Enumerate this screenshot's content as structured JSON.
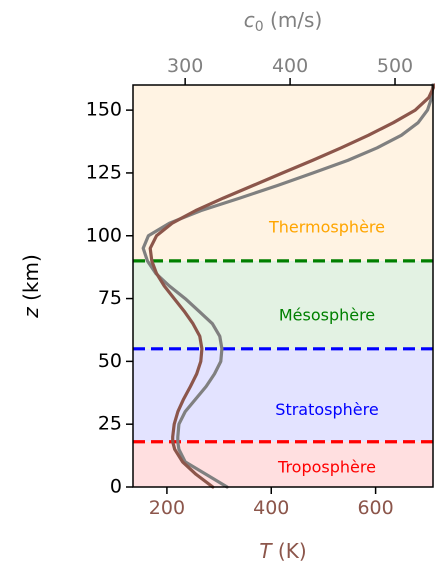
{
  "chart_data": {
    "type": "line",
    "ylabel_var": "z",
    "ylabel_unit": " (km)",
    "xlabel_bottom_var": "T",
    "xlabel_bottom_unit": " (K)",
    "xlabel_top_var": "c",
    "xlabel_top_sub": "0",
    "xlabel_top_unit": " (m/s)",
    "ylim": [
      0,
      160
    ],
    "xlim_bottom": [
      135,
      710
    ],
    "xlim_top": [
      250.3,
      536.2
    ],
    "yticks": [
      0,
      25,
      50,
      75,
      100,
      125,
      150
    ],
    "xticks_bottom": [
      200,
      400,
      600
    ],
    "xticks_top": [
      300,
      400,
      500
    ],
    "colors": {
      "temperature": "#8c564b",
      "sound_speed": "#808080",
      "bottom_axis_text": "#8c564b",
      "top_axis_text": "#808080"
    },
    "layers": [
      {
        "name": "Troposphère",
        "z_min": 0,
        "z_max": 18,
        "z_label": 7.5,
        "fill": "#ffdfe0",
        "line_color": "#ff0000",
        "text_color": "#ff0000"
      },
      {
        "name": "Stratosphère",
        "z_min": 18,
        "z_max": 55,
        "z_label": 30.5,
        "fill": "#e3e3ff",
        "line_color": "#0000ff",
        "text_color": "#0000ff"
      },
      {
        "name": "Mésosphère",
        "z_min": 55,
        "z_max": 90,
        "z_label": 68,
        "fill": "#e3f2e3",
        "line_color": "#008000",
        "text_color": "#008000"
      },
      {
        "name": "Thermosphère",
        "z_min": 90,
        "z_max": 160,
        "z_label": 103,
        "fill": "#fff3e3",
        "line_color": null,
        "text_color": "#ffa500"
      }
    ],
    "series": [
      {
        "key": "temperature",
        "axis": "bottom",
        "z": [
          0,
          5,
          10,
          15,
          18,
          20,
          25,
          30,
          35,
          40,
          45,
          50,
          55,
          60,
          65,
          70,
          75,
          80,
          85,
          90,
          95,
          100,
          105,
          110,
          115,
          120,
          125,
          130,
          135,
          140,
          145,
          150,
          155,
          160
        ],
        "values": [
          288,
          256,
          230,
          215,
          211,
          211,
          214,
          221,
          232,
          245,
          257,
          265,
          267,
          263,
          250,
          233,
          214,
          195,
          180,
          171,
          168,
          180,
          210,
          255,
          308,
          365,
          422,
          479,
          534,
          586,
          634,
          676,
          702,
          713
        ]
      },
      {
        "key": "sound_speed",
        "axis": "top",
        "z": [
          0,
          5,
          10,
          15,
          18,
          20,
          25,
          30,
          35,
          40,
          45,
          50,
          55,
          60,
          65,
          70,
          75,
          80,
          85,
          90,
          95,
          100,
          105,
          110,
          115,
          120,
          125,
          130,
          135,
          140,
          145,
          150,
          155,
          160
        ],
        "values": [
          340,
          320,
          300,
          294,
          293,
          293,
          294,
          300,
          310,
          320,
          328,
          334,
          335,
          333,
          326,
          313,
          300,
          285,
          272,
          264,
          260,
          265,
          285,
          315,
          352,
          388,
          422,
          455,
          483,
          506,
          522,
          531,
          535,
          536
        ]
      }
    ]
  }
}
